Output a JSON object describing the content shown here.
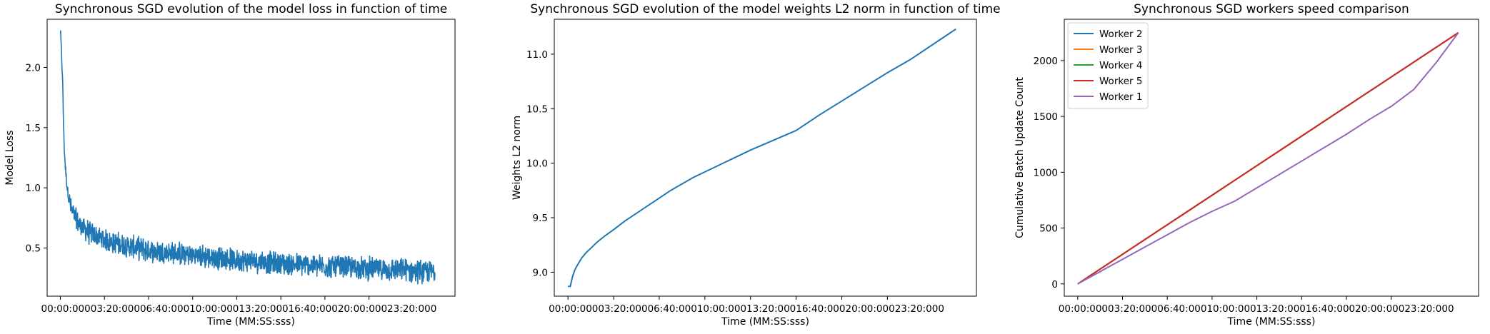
{
  "chart_data": [
    {
      "type": "line",
      "title": "Synchronous SGD evolution of the model loss in function of time",
      "xlabel": "Time (MM:SS:sss)",
      "ylabel": "Model Loss",
      "xticklabels": [
        "00:00:000",
        "03:20:000",
        "06:40:000",
        "10:00:000",
        "13:20:000",
        "16:40:000",
        "20:00:000",
        "23:20:000"
      ],
      "yticks": [
        0.5,
        1.0,
        1.5,
        2.0
      ],
      "yticklabels": [
        "0.5",
        "1.0",
        "1.5",
        "2.0"
      ],
      "xlim": [
        -60,
        1790
      ],
      "ylim": [
        0.1,
        2.4
      ],
      "color": "#1f77b4",
      "series": [
        {
          "x": [
            0,
            3,
            6,
            9,
            12,
            15,
            20,
            25,
            30,
            35,
            40,
            45,
            50,
            60,
            70,
            80,
            90,
            100,
            115,
            130,
            150,
            175,
            200,
            250,
            300,
            350,
            400,
            500,
            600,
            700,
            800,
            900,
            1000,
            1100,
            1200,
            1300,
            1400,
            1500,
            1600,
            1700
          ],
          "y": [
            2.3,
            2.2,
            2.08,
            1.95,
            1.75,
            1.45,
            1.25,
            1.12,
            1.02,
            0.95,
            0.9,
            0.86,
            0.82,
            0.78,
            0.74,
            0.71,
            0.69,
            0.67,
            0.65,
            0.63,
            0.61,
            0.59,
            0.57,
            0.54,
            0.52,
            0.5,
            0.48,
            0.46,
            0.44,
            0.42,
            0.4,
            0.39,
            0.37,
            0.36,
            0.35,
            0.34,
            0.33,
            0.32,
            0.31,
            0.3
          ],
          "noise": 0.09
        }
      ]
    },
    {
      "type": "line",
      "title": "Synchronous SGD evolution of the model weights L2 norm in function of time",
      "xlabel": "Time (MM:SS:sss)",
      "ylabel": "Weights L2 norm",
      "xticklabels": [
        "00:00:000",
        "03:20:000",
        "06:40:000",
        "10:00:000",
        "13:20:000",
        "16:40:000",
        "20:00:000",
        "23:20:000"
      ],
      "yticks": [
        9.0,
        9.5,
        10.0,
        10.5,
        11.0
      ],
      "yticklabels": [
        "9.0",
        "9.5",
        "10.0",
        "10.5",
        "11.0"
      ],
      "xlim": [
        -60,
        1790
      ],
      "ylim": [
        8.78,
        11.32
      ],
      "color": "#1f77b4",
      "series": [
        {
          "x": [
            0,
            10,
            20,
            30,
            40,
            60,
            80,
            100,
            130,
            160,
            200,
            250,
            300,
            350,
            400,
            450,
            500,
            550,
            600,
            700,
            800,
            900,
            1000,
            1100,
            1200,
            1300,
            1400,
            1500,
            1600,
            1700
          ],
          "y": [
            8.87,
            8.87,
            8.96,
            9.02,
            9.06,
            9.13,
            9.18,
            9.22,
            9.28,
            9.33,
            9.39,
            9.47,
            9.54,
            9.61,
            9.68,
            9.75,
            9.81,
            9.87,
            9.92,
            10.02,
            10.12,
            10.21,
            10.3,
            10.44,
            10.57,
            10.7,
            10.83,
            10.95,
            11.09,
            11.23
          ]
        }
      ]
    },
    {
      "type": "line",
      "title": "Synchronous SGD workers speed comparison",
      "xlabel": "Time (MM:SS:sss)",
      "ylabel": "Cumulative Batch Update Count",
      "xticklabels": [
        "00:00:000",
        "03:20:000",
        "06:40:000",
        "10:00:000",
        "13:20:000",
        "16:40:000",
        "20:00:000",
        "23:20:000"
      ],
      "yticks": [
        0,
        500,
        1000,
        1500,
        2000
      ],
      "yticklabels": [
        "0",
        "500",
        "1000",
        "1500",
        "2000"
      ],
      "xlim": [
        -60,
        1790
      ],
      "ylim": [
        -110,
        2370
      ],
      "legend_placement": "top-left",
      "series": [
        {
          "name": "Worker 2",
          "color": "#1f77b4",
          "x": [
            0,
            1700
          ],
          "y": [
            0,
            2250
          ]
        },
        {
          "name": "Worker 3",
          "color": "#ff7f0e",
          "x": [
            0,
            1700
          ],
          "y": [
            0,
            2250
          ]
        },
        {
          "name": "Worker 4",
          "color": "#2ca02c",
          "x": [
            0,
            1700
          ],
          "y": [
            0,
            2250
          ]
        },
        {
          "name": "Worker 5",
          "color": "#d62728",
          "x": [
            0,
            1700
          ],
          "y": [
            0,
            2250
          ]
        },
        {
          "name": "Worker 1",
          "color": "#9467bd",
          "x": [
            0,
            100,
            200,
            300,
            400,
            500,
            600,
            700,
            800,
            900,
            1000,
            1100,
            1200,
            1300,
            1400,
            1500,
            1600,
            1700
          ],
          "y": [
            0,
            110,
            220,
            330,
            440,
            550,
            650,
            740,
            860,
            980,
            1100,
            1220,
            1340,
            1470,
            1590,
            1740,
            1980,
            2250
          ]
        }
      ]
    }
  ]
}
